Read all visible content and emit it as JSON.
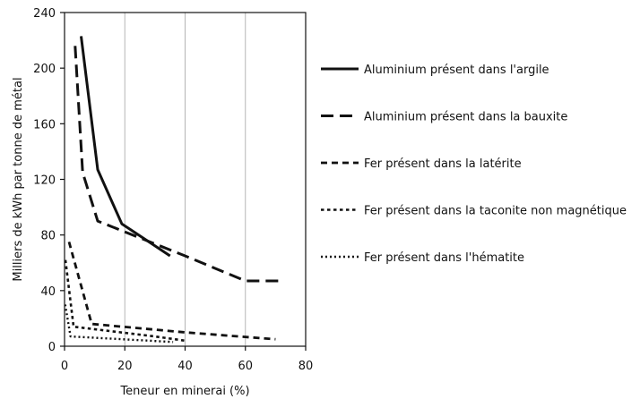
{
  "chart_data": {
    "type": "line",
    "title": "",
    "xlabel": "Teneur en minerai (%)",
    "ylabel": "Milliers de kWh par tonne de métal",
    "xlim": [
      0,
      80
    ],
    "ylim": [
      0,
      240
    ],
    "xticks": [
      0,
      20,
      40,
      60,
      80
    ],
    "yticks": [
      0,
      40,
      80,
      120,
      160,
      200,
      240
    ],
    "grid": "vertical",
    "legend_position": "right",
    "series": [
      {
        "name": "Aluminium présent dans l'argile",
        "dash": "solid",
        "points": [
          [
            5.5,
            223
          ],
          [
            11,
            127
          ],
          [
            19,
            88
          ],
          [
            35,
            65
          ]
        ]
      },
      {
        "name": "Aluminium présent dans la bauxite",
        "dash": "dashed",
        "points": [
          [
            3.5,
            216
          ],
          [
            6,
            125
          ],
          [
            11,
            90
          ],
          [
            40,
            65
          ],
          [
            60,
            47
          ],
          [
            71,
            47
          ]
        ]
      },
      {
        "name": "Fer présent dans la latérite",
        "dash": "short-dashed",
        "points": [
          [
            1.5,
            75
          ],
          [
            9,
            16
          ],
          [
            40,
            10
          ],
          [
            70,
            5
          ]
        ]
      },
      {
        "name": "Fer présent dans la taconite non magnétique",
        "dash": "dotted",
        "points": [
          [
            0.3,
            62
          ],
          [
            3,
            14
          ],
          [
            30,
            7
          ],
          [
            40,
            4
          ]
        ]
      },
      {
        "name": "Fer présent dans l'hématite",
        "dash": "fine-dotted",
        "points": [
          [
            0.2,
            30
          ],
          [
            2,
            7
          ],
          [
            28,
            4
          ],
          [
            36,
            3
          ]
        ]
      }
    ]
  }
}
